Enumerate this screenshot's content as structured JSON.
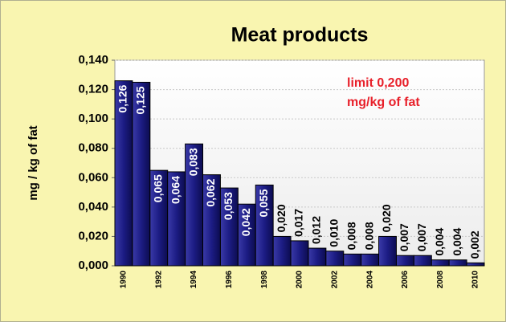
{
  "chart_data": {
    "type": "bar",
    "title": "Meat products",
    "ylabel": "mg / kg of fat",
    "annotation": [
      "limit 0,200",
      "mg/kg of fat"
    ],
    "annotation_color": "#e8202a",
    "categories": [
      "1990",
      null,
      "1992",
      null,
      "1994",
      null,
      "1996",
      null,
      "1998",
      null,
      "2000",
      null,
      "2002",
      null,
      "2004",
      null,
      "2006",
      null,
      "2008",
      null,
      "2010"
    ],
    "values": [
      0.126,
      0.125,
      0.065,
      0.064,
      0.083,
      0.062,
      0.053,
      0.042,
      0.055,
      0.02,
      0.017,
      0.012,
      0.01,
      0.008,
      0.008,
      0.02,
      0.007,
      0.007,
      0.004,
      0.004,
      0.002
    ],
    "value_labels": [
      "0,126",
      "0,125",
      "0,065",
      "0,064",
      "0,083",
      "0,062",
      "0,053",
      "0,042",
      "0,055",
      "0,020",
      "0,017",
      "0,012",
      "0,010",
      "0,008",
      "0,008",
      "0,020",
      "0,007",
      "0,007",
      "0,004",
      "0,004",
      "0,002"
    ],
    "color": "#1c1c84",
    "ylim": [
      0,
      0.14
    ],
    "yticks": [
      {
        "value": 0,
        "label": "0,000"
      },
      {
        "value": 0.02,
        "label": "0,020"
      },
      {
        "value": 0.04,
        "label": "0,040"
      },
      {
        "value": 0.06,
        "label": "0,060"
      },
      {
        "value": 0.08,
        "label": "0,080"
      },
      {
        "value": 0.1,
        "label": "0,100"
      },
      {
        "value": 0.12,
        "label": "0,120"
      },
      {
        "value": 0.14,
        "label": "0,140"
      }
    ],
    "grid": true
  }
}
